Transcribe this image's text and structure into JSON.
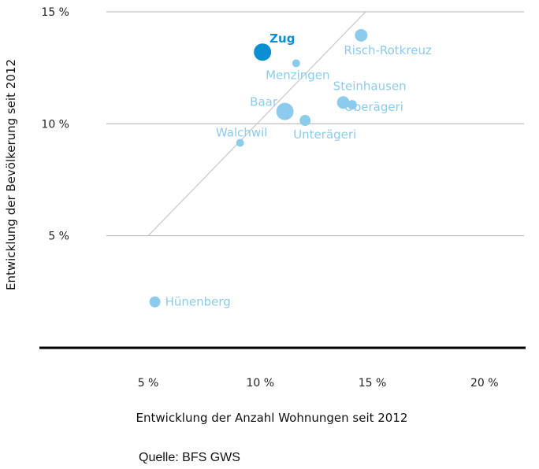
{
  "chart_data": {
    "type": "scatter",
    "xlabel": "Entwicklung der Anzahl Wohnungen seit 2012",
    "ylabel": "Entwicklung der Bevölkerung seit 2012",
    "xlim": [
      0,
      22
    ],
    "ylim": [
      0,
      15
    ],
    "x_ticks": [
      5,
      10,
      15,
      20
    ],
    "y_ticks": [
      5,
      10,
      15
    ],
    "x_tick_labels": [
      "5 %",
      "10 %",
      "15 %",
      "20 %"
    ],
    "y_tick_labels": [
      "5 %",
      "10 %",
      "15 %"
    ],
    "grid": "horizontal",
    "reference_line": {
      "from": [
        5,
        5
      ],
      "to": [
        14.7,
        15
      ]
    },
    "points": [
      {
        "name": "Zug",
        "x": 10.1,
        "y": 13.2,
        "r": 11,
        "highlight": true
      },
      {
        "name": "Risch-Rotkreuz",
        "x": 14.5,
        "y": 13.95,
        "r": 8
      },
      {
        "name": "Menzingen",
        "x": 11.6,
        "y": 12.7,
        "r": 5
      },
      {
        "name": "Steinhausen",
        "x": 13.7,
        "y": 10.95,
        "r": 8
      },
      {
        "name": "Oberägeri",
        "x": 14.1,
        "y": 10.85,
        "r": 6
      },
      {
        "name": "Baar",
        "x": 11.1,
        "y": 10.55,
        "r": 11
      },
      {
        "name": "Unterägeri",
        "x": 12.0,
        "y": 10.15,
        "r": 7
      },
      {
        "name": "Walchwil",
        "x": 9.1,
        "y": 9.15,
        "r": 5
      },
      {
        "name": "Hünenberg",
        "x": 5.3,
        "y": 2.05,
        "r": 7
      }
    ],
    "colors": {
      "point": "#8ccbeb",
      "highlight": "#0b8fd2",
      "grid": "#b0b0b0",
      "reference_line": "#c8c8c8",
      "axis": "#000000"
    }
  },
  "source": "Quelle: BFS GWS"
}
